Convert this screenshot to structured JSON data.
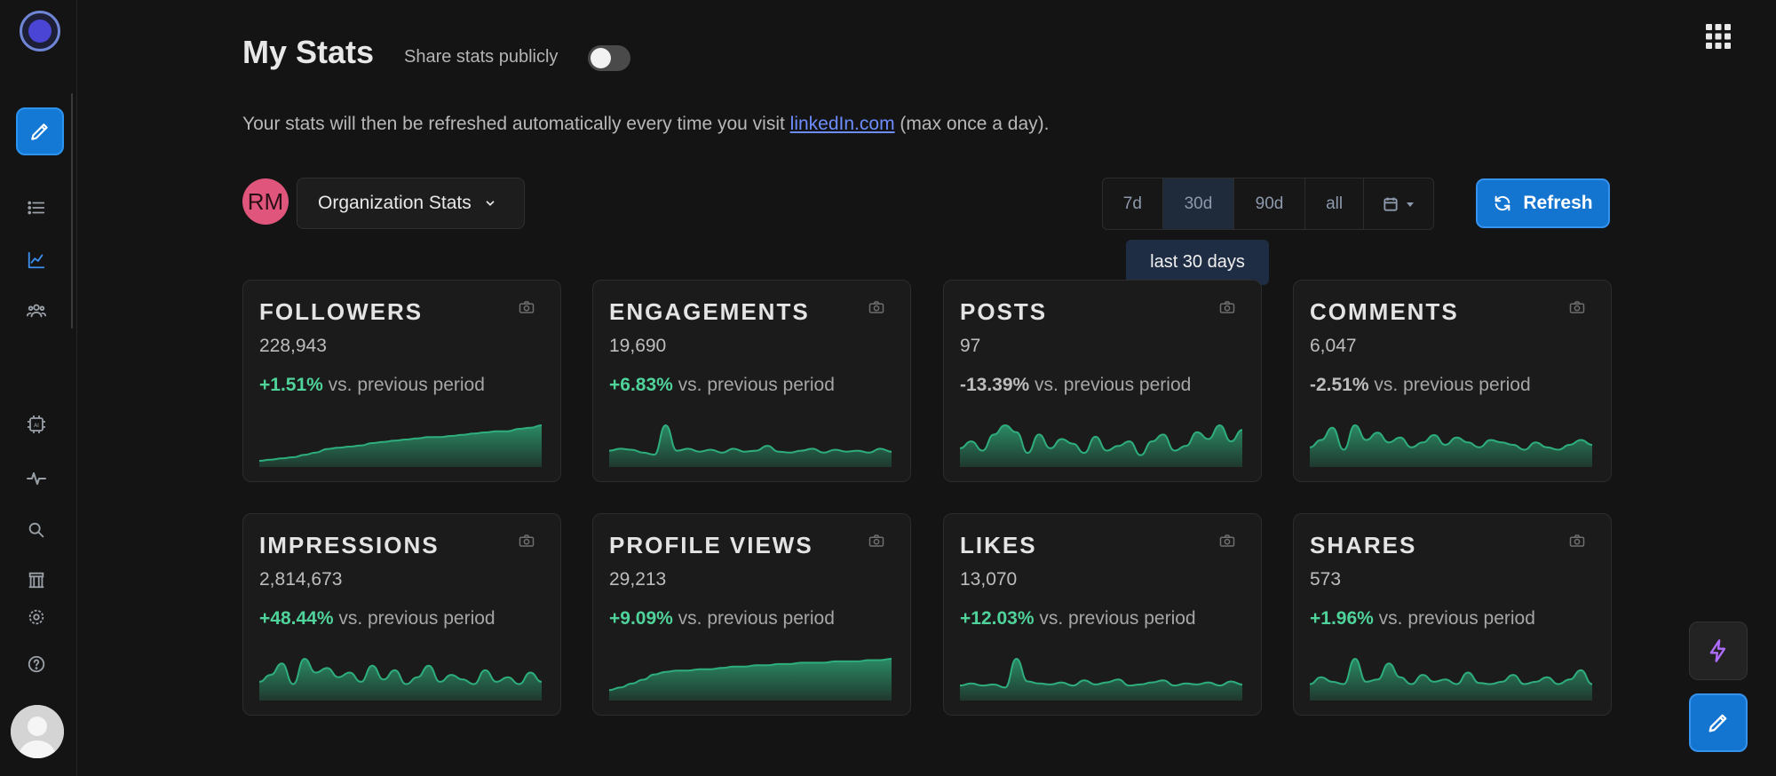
{
  "header": {
    "title": "My Stats",
    "share_label": "Share stats publicly",
    "share_enabled": false
  },
  "info": {
    "prefix": "Your stats will then be refreshed automatically every time you visit ",
    "link": "linkedIn.com",
    "suffix": " (max once a day)."
  },
  "org": {
    "initials": "RM",
    "select_label": "Organization Stats"
  },
  "range": {
    "options": [
      "7d",
      "30d",
      "90d",
      "all"
    ],
    "selected": "30d",
    "tooltip": "last 30 days"
  },
  "refresh_label": "Refresh",
  "colors": {
    "accent": "#1475d0",
    "positive": "#4fd39a",
    "spark_line": "#2fae7d",
    "link": "#6d8dff"
  },
  "cards": [
    {
      "title": "FOLLOWERS",
      "value": "228,943",
      "pct": "+1.51%",
      "dir": "pos",
      "suffix": " vs. previous period",
      "series": [
        3,
        4,
        5,
        6,
        8,
        10,
        13,
        14,
        15,
        16,
        18,
        19,
        20,
        21,
        22,
        23,
        23,
        24,
        25,
        26,
        27,
        28,
        28,
        30,
        31,
        33
      ]
    },
    {
      "title": "ENGAGEMENTS",
      "value": "19,690",
      "pct": "+6.83%",
      "dir": "pos",
      "suffix": " vs. previous period",
      "series": [
        14,
        16,
        15,
        12,
        10,
        40,
        14,
        16,
        13,
        15,
        12,
        16,
        13,
        14,
        19,
        13,
        12,
        14,
        16,
        12,
        15,
        13,
        14,
        12,
        16,
        13
      ]
    },
    {
      "title": "POSTS",
      "value": "97",
      "pct": "-13.39%",
      "dir": "neg",
      "suffix": " vs. previous period",
      "series": [
        14,
        20,
        12,
        26,
        34,
        28,
        10,
        26,
        14,
        22,
        18,
        10,
        24,
        12,
        16,
        20,
        8,
        20,
        26,
        12,
        16,
        28,
        22,
        34,
        20,
        30
      ]
    },
    {
      "title": "COMMENTS",
      "value": "6,047",
      "pct": "-2.51%",
      "dir": "neg",
      "suffix": " vs. previous period",
      "series": [
        14,
        20,
        30,
        12,
        32,
        20,
        26,
        18,
        22,
        14,
        18,
        24,
        16,
        22,
        18,
        14,
        20,
        18,
        16,
        12,
        18,
        14,
        12,
        16,
        20,
        16
      ]
    },
    {
      "title": "IMPRESSIONS",
      "value": "2,814,673",
      "pct": "+48.44%",
      "dir": "pos",
      "suffix": " vs. previous period",
      "series": [
        14,
        20,
        30,
        12,
        34,
        22,
        26,
        18,
        22,
        14,
        28,
        16,
        24,
        12,
        18,
        28,
        14,
        20,
        16,
        12,
        24,
        14,
        18,
        12,
        22,
        14
      ]
    },
    {
      "title": "PROFILE VIEWS",
      "value": "29,213",
      "pct": "+9.09%",
      "dir": "pos",
      "suffix": " vs. previous period",
      "series": [
        6,
        8,
        11,
        14,
        18,
        20,
        21,
        21,
        22,
        22,
        23,
        24,
        24,
        25,
        25,
        26,
        26,
        27,
        27,
        27,
        28,
        28,
        28,
        29,
        29,
        30
      ]
    },
    {
      "title": "LIKES",
      "value": "13,070",
      "pct": "+12.03%",
      "dir": "pos",
      "suffix": " vs. previous period",
      "series": [
        12,
        14,
        12,
        13,
        10,
        38,
        16,
        14,
        13,
        15,
        12,
        17,
        13,
        15,
        18,
        12,
        13,
        15,
        17,
        12,
        14,
        13,
        15,
        12,
        16,
        13
      ]
    },
    {
      "title": "SHARES",
      "value": "573",
      "pct": "+1.96%",
      "dir": "pos",
      "suffix": " vs. previous period",
      "series": [
        12,
        18,
        14,
        12,
        34,
        14,
        16,
        30,
        18,
        12,
        20,
        14,
        16,
        12,
        22,
        13,
        12,
        14,
        20,
        12,
        14,
        18,
        12,
        16,
        24,
        12
      ]
    }
  ]
}
